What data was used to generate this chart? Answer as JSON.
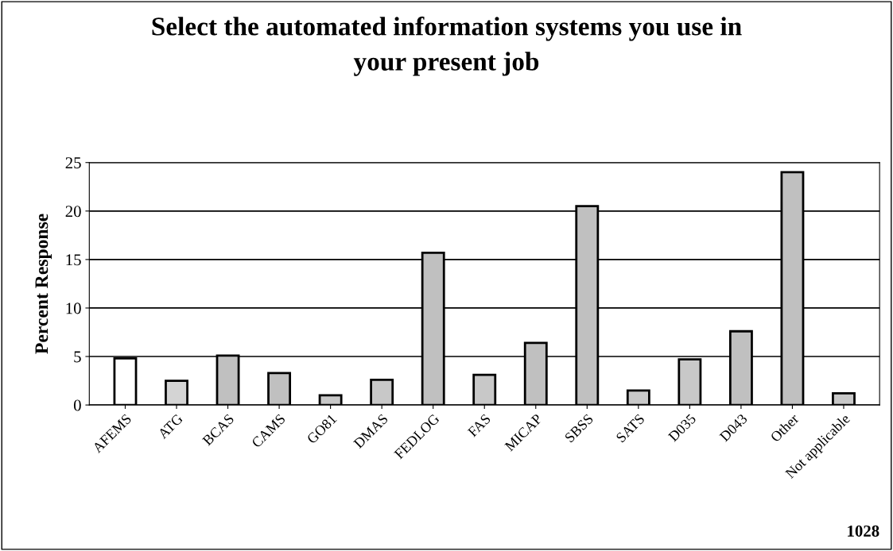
{
  "chart_data": {
    "type": "bar",
    "title": "Select the automated information systems you use in\nyour present job",
    "ylabel": "Percent Response",
    "categories": [
      "AFEMS",
      "ATG",
      "BCAS",
      "CAMS",
      "GO81",
      "DMAS",
      "FEDLOG",
      "FAS",
      "MICAP",
      "SBSS",
      "SATS",
      "D035",
      "D043",
      "Other",
      "Not applicable"
    ],
    "values": [
      4.8,
      2.5,
      5.1,
      3.3,
      1.0,
      2.6,
      15.7,
      3.1,
      6.4,
      20.5,
      1.5,
      4.7,
      7.6,
      24.0,
      1.2
    ],
    "colors": [
      "#ffffff",
      "#d4d4d4",
      "#c0c0c0",
      "#c0c0c0",
      "#c8c8c8",
      "#c8c8c8",
      "#c0c0c0",
      "#c8c8c8",
      "#c0c0c0",
      "#c0c0c0",
      "#c8c8c8",
      "#c8c8c8",
      "#c0c0c0",
      "#c0c0c0",
      "#c8c8c8"
    ],
    "ylim": [
      0,
      25
    ],
    "yticks": [
      0,
      5,
      10,
      15,
      20,
      25
    ],
    "grid": "y",
    "annotations": [
      "1028"
    ]
  }
}
